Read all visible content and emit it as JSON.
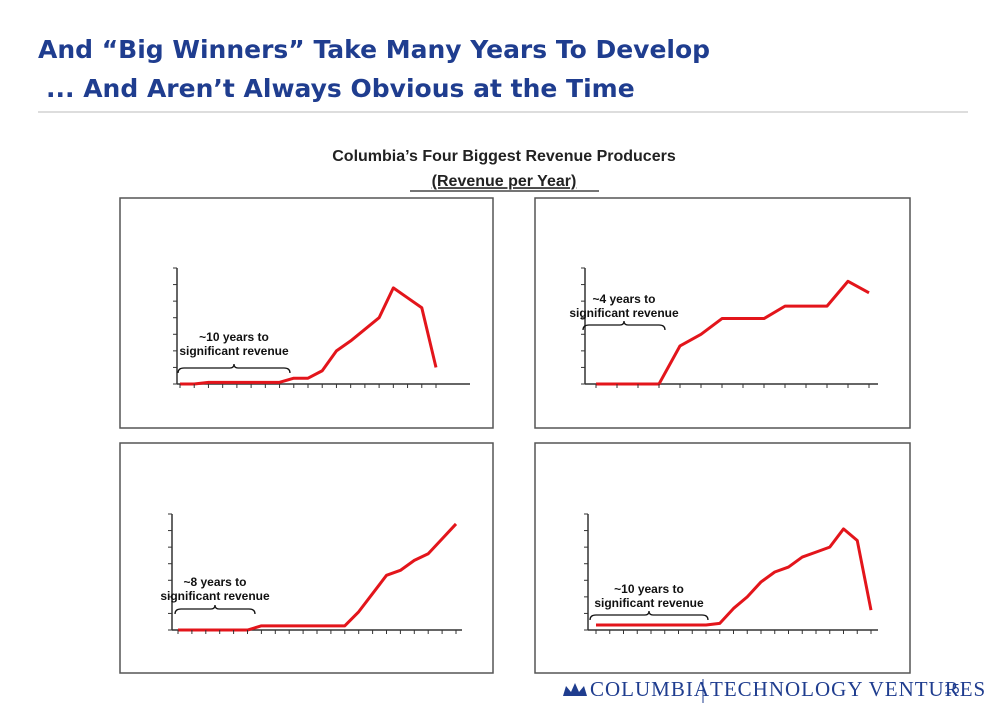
{
  "header": {
    "title": [
      "And “Big Winners” Take Many Years To Develop",
      "... And Aren’t Always Obvious at the Time"
    ]
  },
  "subtitle": "Columbia’s Four Biggest Revenue Producers",
  "subtitle2": "(Revenue per Year)",
  "chart_data": [
    {
      "type": "line",
      "annotation": [
        "~10 years to",
        "significant revenue"
      ],
      "color": "#e3151b",
      "ylim": [
        0,
        7
      ],
      "categories": [
        null,
        null,
        null,
        null,
        null,
        null,
        null,
        null,
        null,
        null,
        null,
        null,
        null,
        null,
        null,
        null,
        null,
        null,
        null
      ],
      "values": [
        0,
        0,
        0.1,
        0.1,
        0.1,
        0.1,
        0.1,
        0.1,
        0.35,
        0.35,
        0.8,
        2,
        2.6,
        3.3,
        4,
        5.8,
        5.2,
        4.6,
        1
      ]
    },
    {
      "type": "line",
      "annotation": [
        "~4 years to",
        "significant revenue"
      ],
      "color": "#e3151b",
      "ylim": [
        0,
        7
      ],
      "categories": [
        null,
        null,
        null,
        null,
        null,
        null,
        null,
        null,
        null,
        null,
        null,
        null,
        null,
        null
      ],
      "values": [
        0,
        0,
        0,
        0,
        2.3,
        3,
        3.95,
        3.95,
        3.95,
        4.7,
        4.7,
        4.7,
        6.2,
        5.5
      ]
    },
    {
      "type": "line",
      "annotation": [
        "~8 years to",
        "significant revenue"
      ],
      "color": "#e3151b",
      "ylim": [
        0,
        7
      ],
      "categories": [
        null,
        null,
        null,
        null,
        null,
        null,
        null,
        null,
        null,
        null,
        null,
        null,
        null,
        null,
        null,
        null,
        null,
        null,
        null,
        null,
        null
      ],
      "values": [
        0,
        0,
        0,
        0,
        0,
        0,
        0.25,
        0.25,
        0.25,
        0.25,
        0.25,
        0.25,
        0.25,
        1.1,
        2.2,
        3.3,
        3.6,
        4.2,
        4.6,
        5.5,
        6.4
      ]
    },
    {
      "type": "line",
      "annotation": [
        "~10 years to",
        "significant revenue"
      ],
      "color": "#e3151b",
      "ylim": [
        0,
        7
      ],
      "categories": [
        null,
        null,
        null,
        null,
        null,
        null,
        null,
        null,
        null,
        null,
        null,
        null,
        null,
        null,
        null,
        null,
        null,
        null,
        null,
        null,
        null
      ],
      "values": [
        0.3,
        0.3,
        0.3,
        0.3,
        0.3,
        0.3,
        0.3,
        0.3,
        0.3,
        0.4,
        1.3,
        2,
        2.9,
        3.5,
        3.8,
        4.4,
        4.7,
        5,
        6.1,
        5.4,
        1.2
      ]
    }
  ],
  "footer": {
    "brand": "Columbia",
    "unit": "Technology Ventures",
    "page": "15"
  }
}
